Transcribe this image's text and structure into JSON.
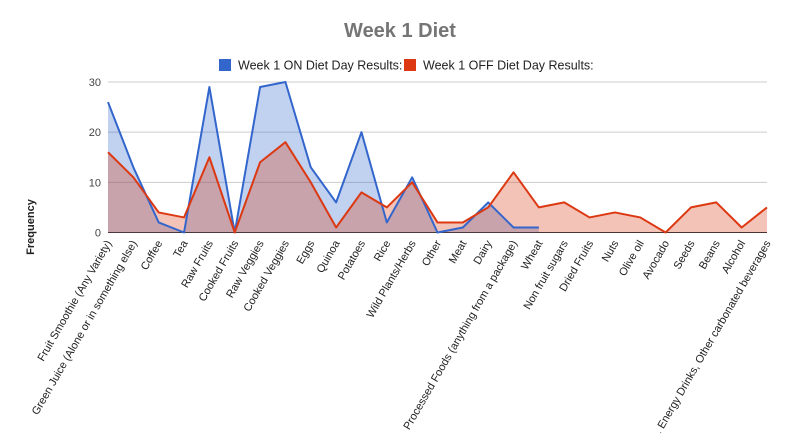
{
  "chart_data": {
    "type": "area",
    "title": "Week 1 Diet",
    "xlabel": "",
    "ylabel": "Frequency",
    "ylim": [
      0,
      30
    ],
    "yticks": [
      0,
      10,
      20,
      30
    ],
    "grid": true,
    "legend_position": "top",
    "categories": [
      "Fruit Smoothie (Any Variety)",
      "Green Juice (Alone or in something else)",
      "Coffee",
      "Tea",
      "Raw Fruits",
      "Cooked Fruits",
      "Raw Veggies",
      "Cooked Veggies",
      "Eggs",
      "Quinoa",
      "Potatoes",
      "Rice",
      "Wild Plants/Herbs",
      "Other",
      "Meat",
      "Dairy",
      "Processed Foods (anything from a package)",
      "Wheat",
      "Non fruit sugars",
      "Dried Fruits",
      "Nuts",
      "Olive oil",
      "Avocado",
      "Seeds",
      "Beans",
      "Alcohol",
      "Soda, Energy Drinks, Other carbonated beverages"
    ],
    "series": [
      {
        "name": "Week 1 ON Diet Day Results:",
        "color": "#3366cc",
        "values": [
          26,
          13,
          2,
          0,
          29,
          0,
          29,
          30,
          13,
          6,
          20,
          2,
          11,
          0,
          1,
          6,
          1,
          1,
          null,
          null,
          null,
          null,
          null,
          null,
          null,
          null,
          null
        ]
      },
      {
        "name": "Week 1 OFF Diet Day Results:",
        "color": "#dc3912",
        "values": [
          16,
          11,
          4,
          3,
          15,
          0,
          14,
          18,
          10,
          1,
          8,
          5,
          10,
          2,
          2,
          5,
          12,
          5,
          6,
          3,
          4,
          3,
          0,
          5,
          6,
          1,
          5
        ]
      }
    ]
  }
}
